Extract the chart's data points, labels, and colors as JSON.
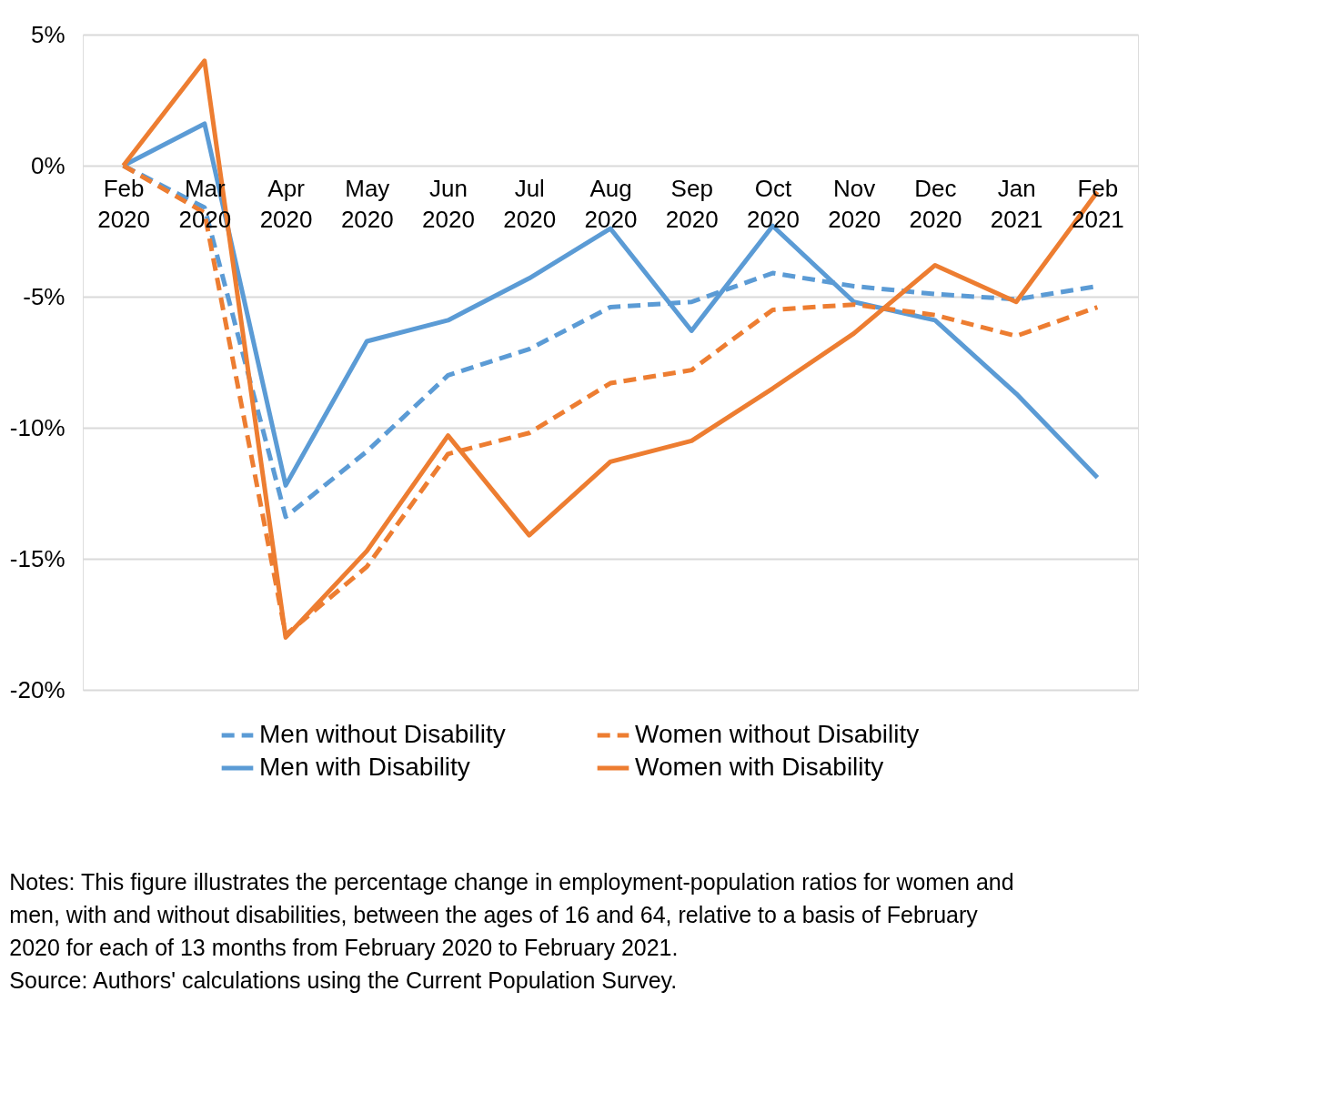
{
  "chart_data": {
    "type": "line",
    "categories": [
      "Feb 2020",
      "Mar 2020",
      "Apr 2020",
      "May 2020",
      "Jun 2020",
      "Jul 2020",
      "Aug 2020",
      "Sep 2020",
      "Oct 2020",
      "Nov 2020",
      "Dec 2020",
      "Jan 2021",
      "Feb 2021"
    ],
    "series": [
      {
        "name": "Men without Disability",
        "color": "#5b9bd5",
        "line_style": "dashed",
        "values": [
          0,
          -1.6,
          -13.4,
          -10.9,
          -8.0,
          -7.0,
          -5.4,
          -5.2,
          -4.1,
          -4.6,
          -4.9,
          -5.1,
          -4.6
        ]
      },
      {
        "name": "Men with Disability",
        "color": "#5b9bd5",
        "line_style": "solid",
        "values": [
          0,
          1.6,
          -12.2,
          -6.7,
          -5.9,
          -4.3,
          -2.4,
          -6.3,
          -2.3,
          -5.2,
          -5.9,
          -8.7,
          -11.9
        ]
      },
      {
        "name": "Women without Disability",
        "color": "#ed7d31",
        "line_style": "dashed",
        "values": [
          0,
          -1.8,
          -17.9,
          -15.3,
          -11.0,
          -10.2,
          -8.3,
          -7.8,
          -5.5,
          -5.3,
          -5.7,
          -6.5,
          -5.4
        ]
      },
      {
        "name": "Women with Disability",
        "color": "#ed7d31",
        "line_style": "solid",
        "values": [
          0,
          4.0,
          -18.0,
          -14.7,
          -10.3,
          -14.1,
          -11.3,
          -10.5,
          -8.5,
          -6.4,
          -3.8,
          -5.2,
          -1.0
        ]
      }
    ],
    "ylim": [
      -20,
      5
    ],
    "yticks": [
      {
        "value": -20,
        "label": "-20%"
      },
      {
        "value": -15,
        "label": "-15%"
      },
      {
        "value": -10,
        "label": "-10%"
      },
      {
        "value": -5,
        "label": "-5%"
      },
      {
        "value": 0,
        "label": "0%"
      },
      {
        "value": 5,
        "label": "5%"
      }
    ],
    "grid": "y",
    "legend": "bottom",
    "marker": "none",
    "annotations": [
      "Notes: This figure illustrates the percentage change in employment-population ratios for women and men, with and without disabilities, between the ages of 16 and 64, relative to a basis of February 2020 for each of 13 months from February 2020 to February 2021.",
      "Source: Authors' calculations using the Current Population Survey."
    ]
  }
}
